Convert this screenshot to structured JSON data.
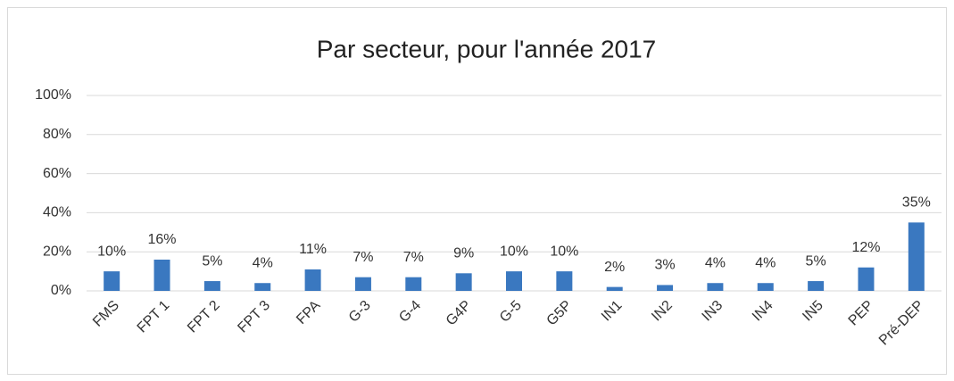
{
  "chart_data": {
    "type": "bar",
    "title": "Par secteur, pour l'année 2017",
    "categories": [
      "FMS",
      "FPT 1",
      "FPT 2",
      "FPT 3",
      "FPA",
      "G-3",
      "G-4",
      "G4P",
      "G-5",
      "G5P",
      "IN1",
      "IN2",
      "IN3",
      "IN4",
      "IN5",
      "PEP",
      "Pré-DEP"
    ],
    "values": [
      10,
      16,
      5,
      4,
      11,
      7,
      7,
      9,
      10,
      10,
      2,
      3,
      4,
      4,
      5,
      12,
      35
    ],
    "value_labels": [
      "10%",
      "16%",
      "5%",
      "4%",
      "11%",
      "7%",
      "7%",
      "9%",
      "10%",
      "10%",
      "2%",
      "3%",
      "4%",
      "4%",
      "5%",
      "12%",
      "35%"
    ],
    "color": "#3a78c0",
    "ylim": [
      0,
      100
    ],
    "yticks": [
      {
        "value": 0,
        "label": "0%"
      },
      {
        "value": 20,
        "label": "20%"
      },
      {
        "value": 40,
        "label": "40%"
      },
      {
        "value": 60,
        "label": "60%"
      },
      {
        "value": 80,
        "label": "80%"
      },
      {
        "value": 100,
        "label": "100%"
      }
    ],
    "grid": true
  }
}
